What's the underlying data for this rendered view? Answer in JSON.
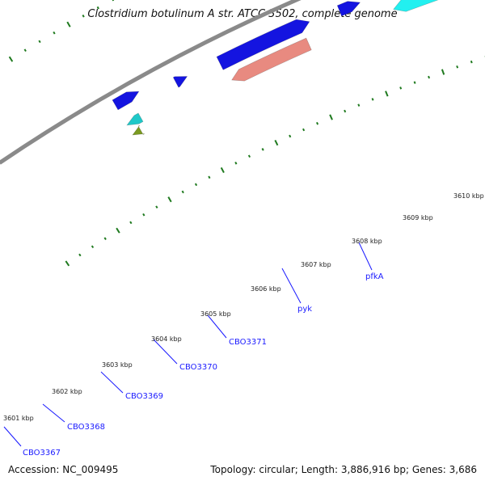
{
  "title": "Clostridium botulinum A str. ATCC 3502, complete genome",
  "footer": {
    "accession": "Accession: NC_009495",
    "topology": "Topology: circular; Length: 3,886,916 bp; Genes: 3,686"
  },
  "colors": {
    "backbone": "#8a8a8a",
    "forward_cds": "#1414e0",
    "reverse_cyan": "#1ec8c8",
    "reverse_cyan_light": "#22f0f0",
    "reverse_salmon": "#e88a80",
    "reverse_pink": "#f0209a",
    "reverse_olive": "#7a9a20",
    "tick_green": "#1f7a1f",
    "label_blue": "#1a1aff"
  },
  "kbp_labels": [
    "3601 kbp",
    "3602 kbp",
    "3603 kbp",
    "3604 kbp",
    "3605 kbp",
    "3606 kbp",
    "3607 kbp",
    "3608 kbp",
    "3609 kbp",
    "3610 kbp"
  ],
  "gene_labels": [
    "CBO3367",
    "CBO3368",
    "CBO3369",
    "CBO3370",
    "CBO3371",
    "pyk",
    "pfkA"
  ]
}
